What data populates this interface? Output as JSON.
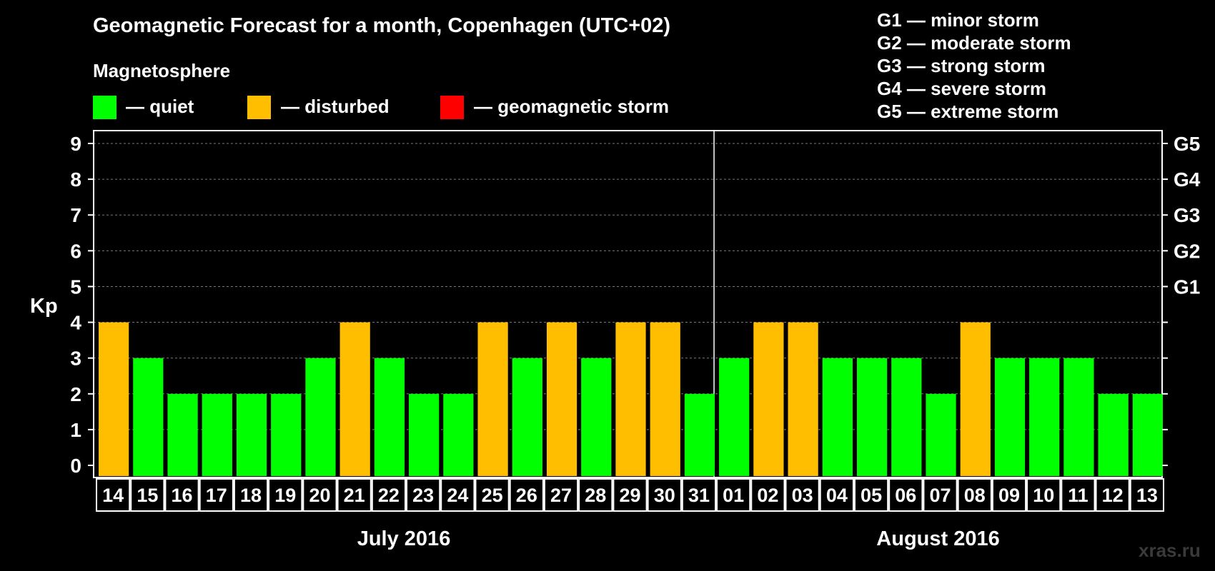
{
  "title": "Geomagnetic Forecast for a month, Copenhagen (UTC+02)",
  "legend": {
    "heading": "Magnetosphere",
    "items": [
      {
        "label": "— quiet",
        "color": "#00ff00"
      },
      {
        "label": "— disturbed",
        "color": "#ffbf00"
      },
      {
        "label": "— geomagnetic storm",
        "color": "#ff0000"
      }
    ]
  },
  "storm_scale": [
    "G1 — minor storm",
    "G2 — moderate storm",
    "G3 — strong storm",
    "G4 — severe storm",
    "G5 — extreme storm"
  ],
  "watermark": "xras.ru",
  "chart_data": {
    "type": "bar",
    "ylabel": "Kp",
    "ylim": [
      0,
      9
    ],
    "yticks": [
      0,
      1,
      2,
      3,
      4,
      5,
      6,
      7,
      8,
      9
    ],
    "right_axis_labels": [
      {
        "kp": 5,
        "label": "G1"
      },
      {
        "kp": 6,
        "label": "G2"
      },
      {
        "kp": 7,
        "label": "G3"
      },
      {
        "kp": 8,
        "label": "G4"
      },
      {
        "kp": 9,
        "label": "G5"
      }
    ],
    "grid": true,
    "months": [
      {
        "label": "July 2016",
        "first_index": 0,
        "last_index": 17
      },
      {
        "label": "August 2016",
        "first_index": 18,
        "last_index": 30
      }
    ],
    "categories": [
      "14",
      "15",
      "16",
      "17",
      "18",
      "19",
      "20",
      "21",
      "22",
      "23",
      "24",
      "25",
      "26",
      "27",
      "28",
      "29",
      "30",
      "31",
      "01",
      "02",
      "03",
      "04",
      "05",
      "06",
      "07",
      "08",
      "09",
      "10",
      "11",
      "12",
      "13"
    ],
    "values": [
      4,
      3,
      2,
      2,
      2,
      2,
      3,
      4,
      3,
      2,
      2,
      4,
      3,
      4,
      3,
      4,
      4,
      2,
      3,
      4,
      4,
      3,
      3,
      3,
      2,
      4,
      3,
      3,
      3,
      2,
      2
    ],
    "status": [
      "disturbed",
      "quiet",
      "quiet",
      "quiet",
      "quiet",
      "quiet",
      "quiet",
      "disturbed",
      "quiet",
      "quiet",
      "quiet",
      "disturbed",
      "quiet",
      "disturbed",
      "quiet",
      "disturbed",
      "disturbed",
      "quiet",
      "quiet",
      "disturbed",
      "disturbed",
      "quiet",
      "quiet",
      "quiet",
      "quiet",
      "disturbed",
      "quiet",
      "quiet",
      "quiet",
      "quiet",
      "quiet"
    ],
    "colors": {
      "quiet": "#00ff00",
      "disturbed": "#ffbf00",
      "storm": "#ff0000"
    }
  }
}
